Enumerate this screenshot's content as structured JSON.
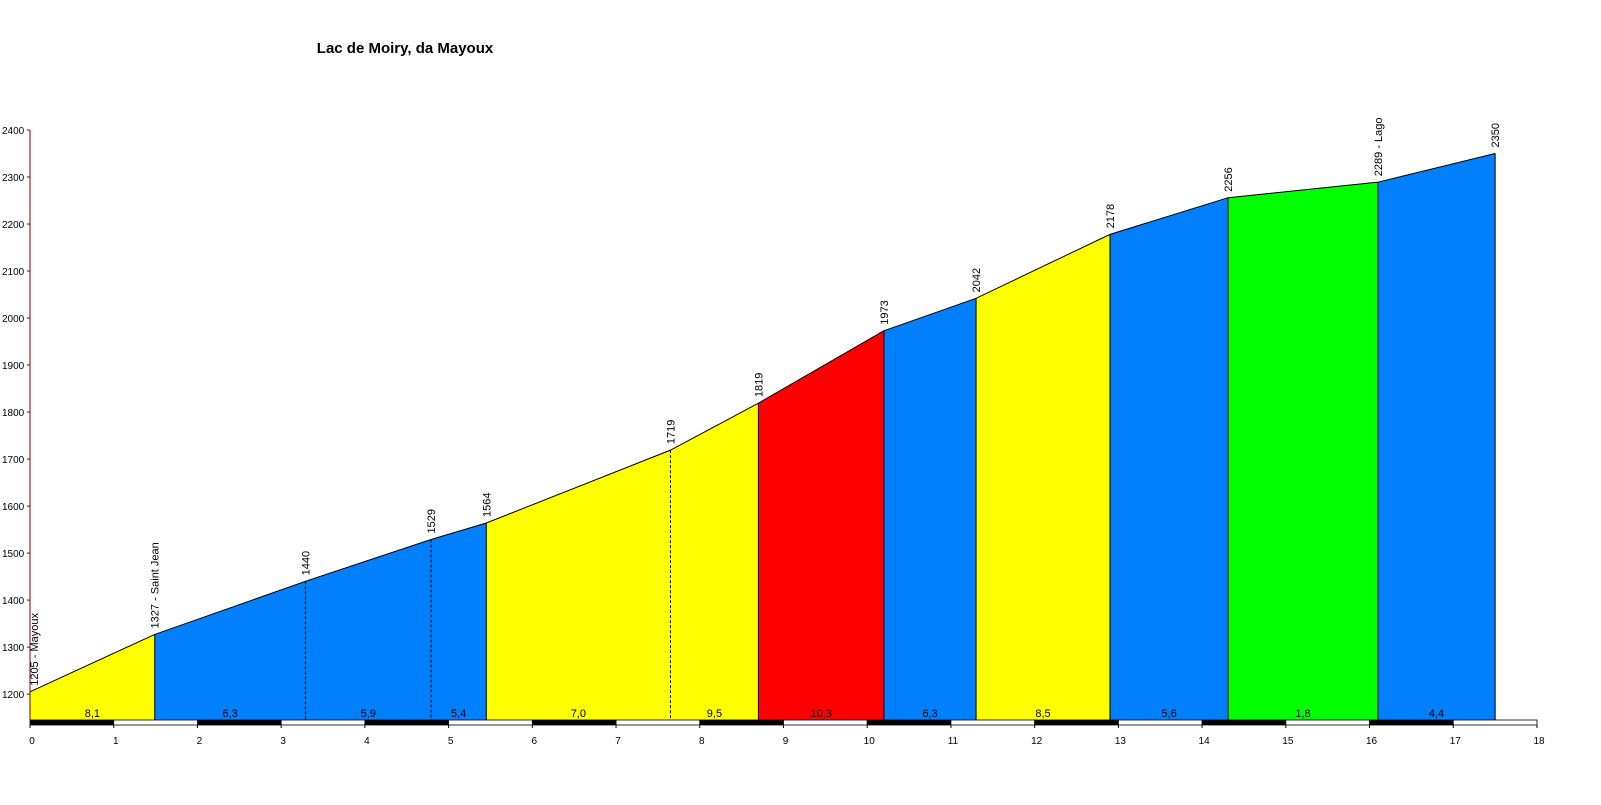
{
  "chart_data": {
    "type": "area",
    "title": "Lac de Moiry, da Mayoux",
    "x": [
      0,
      1.49,
      3.29,
      4.79,
      5.45,
      7.65,
      8.7,
      10.2,
      11.3,
      12.9,
      14.31,
      16.1,
      17.5
    ],
    "values": [
      1205,
      1327,
      1440,
      1529,
      1564,
      1719,
      1819,
      1973,
      2042,
      2178,
      2256,
      2289,
      2350
    ],
    "value_labels": [
      "1205 - Mayoux",
      "1327 - Saint Jean",
      "1440",
      "1529",
      "1564",
      "1719",
      "1819",
      "1973",
      "2042",
      "2178",
      "2256",
      "2289 - Lago",
      "2350"
    ],
    "segment_colors": [
      "#ffff00",
      "#0080ff",
      "#0080ff",
      "#0080ff",
      "#ffff00",
      "#ffff00",
      "#ff0000",
      "#0080ff",
      "#ffff00",
      "#0080ff",
      "#00ff00",
      "#0080ff"
    ],
    "grade_labels": [
      "8,1",
      "6,3",
      "5,9",
      "5,4",
      "7,0",
      "9,5",
      "10,3",
      "6,3",
      "8,5",
      "5,6",
      "1,8",
      "4,4"
    ],
    "xlim": [
      0,
      18
    ],
    "xticks": [
      0,
      1,
      2,
      3,
      4,
      5,
      6,
      7,
      8,
      9,
      10,
      11,
      12,
      13,
      14,
      15,
      16,
      17,
      18
    ],
    "ylim": [
      1145,
      2400
    ],
    "yticks": [
      1200,
      1300,
      1400,
      1500,
      1600,
      1700,
      1800,
      1900,
      2000,
      2100,
      2200,
      2300,
      2400
    ]
  }
}
